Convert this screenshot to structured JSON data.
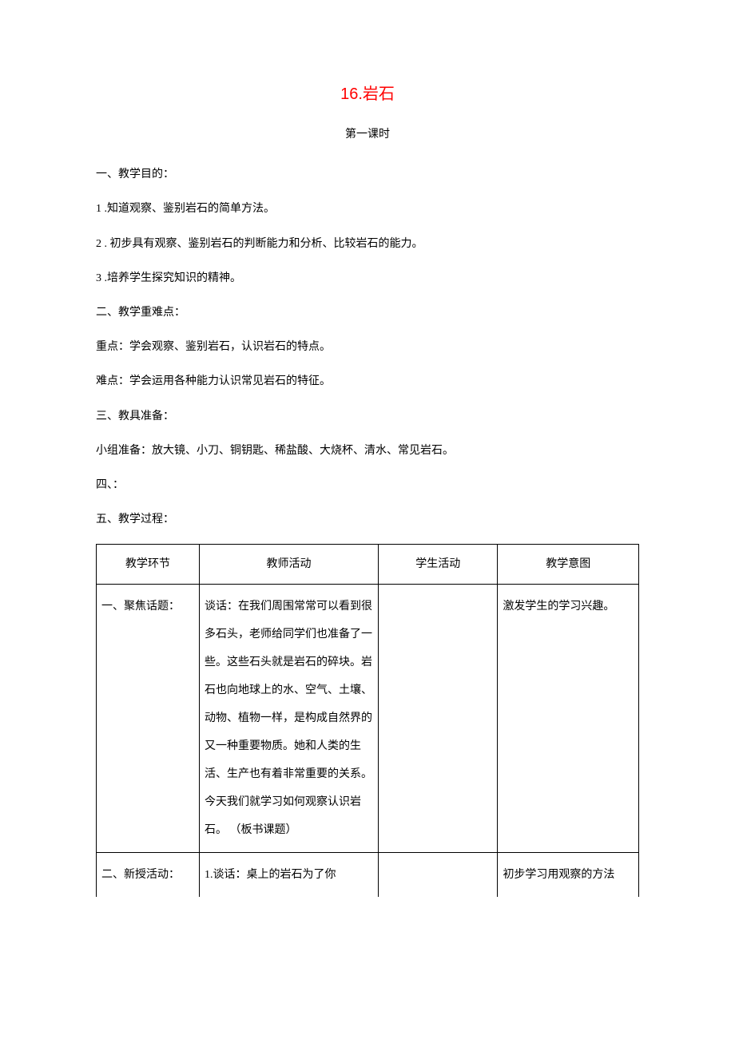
{
  "title": {
    "number": "16.",
    "text": "岩石",
    "color": "#ff0000"
  },
  "subtitle": "第一课时",
  "sections": [
    {
      "heading": "一、教学目的："
    },
    {
      "text": "1 .知道观察、鉴别岩石的简单方法。"
    },
    {
      "text": "2  . 初步具有观察、鉴别岩石的判断能力和分析、比较岩石的能力。"
    },
    {
      "text": "3  .培养学生探究知识的精神。"
    },
    {
      "heading": "二、教学重难点："
    },
    {
      "text": "重点：学会观察、鉴别岩石，认识岩石的特点。"
    },
    {
      "text": "难点：学会运用各种能力认识常见岩石的特征。"
    },
    {
      "heading": "三、教具准备："
    },
    {
      "text": "小组准备：放大镜、小刀、铜钥匙、稀盐酸、大烧杯、清水、常见岩石。"
    },
    {
      "heading": "四、："
    },
    {
      "heading": "五、教学过程："
    }
  ],
  "table": {
    "headers": [
      "教学环节",
      "教师活动",
      "学生活动",
      "教学意图"
    ],
    "rows": [
      {
        "col1": "一、聚焦话题：",
        "col2": "谈话：在我们周围常常可以看到很多石头，老师给同学们也准备了一些。这些石头就是岩石的碎块。岩石也向地球上的水、空气、土壤、动物、植物一样，是构成自然界的又一种重要物质。她和人类的生活、生产也有着非常重要的关系。今天我们就学习如何观察认识岩石。 （板书课题）",
        "col3": "",
        "col4": "激发学生的学习兴趣。"
      },
      {
        "col1": "二、新授活动：",
        "col2": "1.谈话：桌上的岩石为了你",
        "col3": "",
        "col4": "初步学习用观察的方法"
      }
    ]
  }
}
